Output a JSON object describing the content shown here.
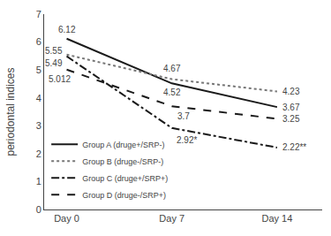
{
  "chart_data": {
    "type": "line",
    "x": [
      0,
      7,
      14
    ],
    "xlim": [
      -1.5,
      17
    ],
    "xticks": [
      {
        "value": 0,
        "label": "Day 0"
      },
      {
        "value": 7,
        "label": "Day 7"
      },
      {
        "value": 14,
        "label": "Day 14"
      }
    ],
    "ylim": [
      0,
      7
    ],
    "yticks": [
      0,
      1,
      2,
      3,
      4,
      5,
      6,
      7
    ],
    "ylabel": "periodontal indices",
    "grid": false,
    "legend": "lower left",
    "data_labels": true,
    "series": [
      {
        "name": "Group A (druge+/SRP-)",
        "color": "#1a1a1a",
        "line_style": "solid",
        "values": [
          6.12,
          4.52,
          3.67
        ],
        "value_labels": [
          "6.12",
          "4.52",
          "3.67"
        ]
      },
      {
        "name": "Group B (druge-/SRP-)",
        "color": "#777777",
        "line_style": "dotted",
        "values": [
          5.55,
          4.67,
          4.23
        ],
        "value_labels": [
          "5.55",
          "4.67",
          "4.23"
        ]
      },
      {
        "name": "Group C (druge+/SRP+)",
        "color": "#1a1a1a",
        "line_style": "dashdot",
        "values": [
          5.49,
          2.92,
          2.22
        ],
        "value_labels": [
          "5.49",
          "2.92*",
          "2.22**"
        ]
      },
      {
        "name": "Group D (druge-/SRP+)",
        "color": "#1a1a1a",
        "line_style": "dashed",
        "values": [
          5.012,
          3.7,
          3.25
        ],
        "value_labels": [
          "5.012",
          "3.7",
          "3.25"
        ]
      }
    ]
  }
}
